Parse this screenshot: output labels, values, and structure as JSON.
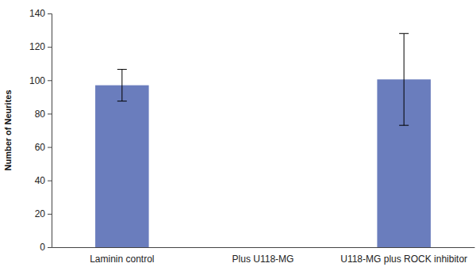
{
  "chart_data": {
    "type": "bar",
    "y_label": "Number of Neurites",
    "categories": [
      "Laminin control",
      "Plus U118-MG",
      "U118-MG plus ROCK inhibitor"
    ],
    "values": [
      97,
      0,
      100.5
    ],
    "errors": [
      9.5,
      0,
      27.5
    ],
    "color": "#6a7dbd",
    "ylim": [
      0,
      140
    ],
    "yticks": [
      0,
      20,
      40,
      60,
      80,
      100,
      120,
      140
    ],
    "grid": false
  }
}
